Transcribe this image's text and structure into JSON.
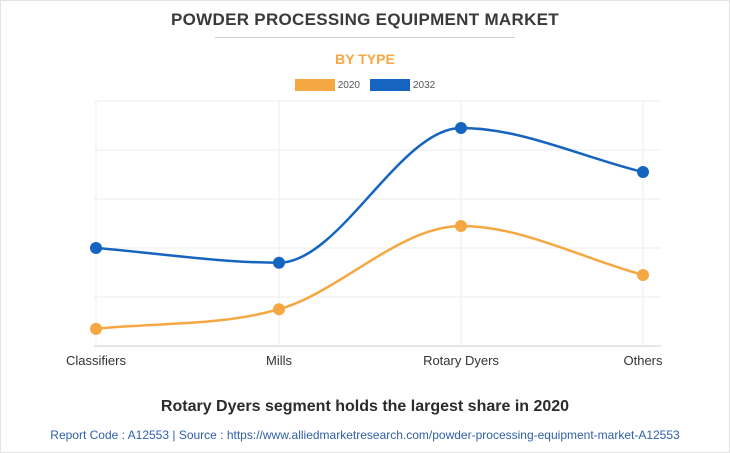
{
  "title": "POWDER PROCESSING EQUIPMENT MARKET",
  "subtitle": "BY TYPE",
  "caption": "Rotary Dyers segment holds the largest share in 2020",
  "footer": "Report Code : A12553  |  Source : https://www.alliedmarketresearch.com/powder-processing-equipment-market-A12553",
  "colors": {
    "series_2020": "#f5a742",
    "series_2032": "#1565c0",
    "subtitle": "#f5a742",
    "footer": "#2f5fa8"
  },
  "chart_data": {
    "type": "line",
    "categories": [
      "Classifiers",
      "Mills",
      "Rotary Dyers",
      "Others"
    ],
    "series": [
      {
        "name": "2020",
        "values": [
          0.35,
          0.75,
          2.45,
          1.45
        ]
      },
      {
        "name": "2032",
        "values": [
          2.0,
          1.7,
          4.45,
          3.55
        ]
      }
    ],
    "ylim": [
      0,
      5
    ],
    "y_ticks_labeled": false,
    "grid": true,
    "legend": "top-center",
    "smooth": true
  }
}
